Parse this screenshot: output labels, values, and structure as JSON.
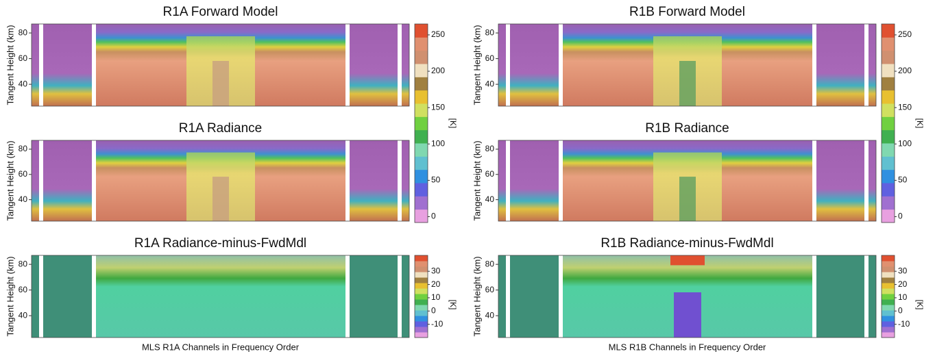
{
  "chart_data": [
    {
      "type": "heatmap",
      "title": "R1A Forward Model",
      "ylabel": "Tangent Height (km)",
      "ylim": [
        23,
        87
      ],
      "yticks": [
        40,
        60,
        80
      ],
      "colorbar": {
        "label": "[K]",
        "clim": [
          -8,
          265
        ],
        "ticks": [
          0,
          50,
          100,
          150,
          200,
          250
        ],
        "colors": [
          "#e8a0e0",
          "#a070d0",
          "#6060e0",
          "#3090e0",
          "#60c0d0",
          "#80d8b0",
          "#40b050",
          "#70d040",
          "#d0e060",
          "#e8c030",
          "#a08040",
          "#f0e0c0",
          "#d09070",
          "#e09070",
          "#e05030"
        ]
      }
    },
    {
      "type": "heatmap",
      "title": "R1B Forward Model",
      "ylabel": "Tangent Height (km)",
      "ylim": [
        23,
        87
      ],
      "yticks": [
        40,
        60,
        80
      ],
      "colorbar": {
        "label": "[K]",
        "clim": [
          -8,
          265
        ],
        "ticks": [
          0,
          50,
          100,
          150,
          200,
          250
        ],
        "colors": [
          "#e8a0e0",
          "#a070d0",
          "#6060e0",
          "#3090e0",
          "#60c0d0",
          "#80d8b0",
          "#40b050",
          "#70d040",
          "#d0e060",
          "#e8c030",
          "#a08040",
          "#f0e0c0",
          "#d09070",
          "#e09070",
          "#e05030"
        ]
      }
    },
    {
      "type": "heatmap",
      "title": "R1A Radiance",
      "ylabel": "Tangent Height (km)",
      "ylim": [
        23,
        87
      ],
      "yticks": [
        40,
        60,
        80
      ]
    },
    {
      "type": "heatmap",
      "title": "R1B Radiance",
      "ylabel": "Tangent Height (km)",
      "ylim": [
        23,
        87
      ],
      "yticks": [
        40,
        60,
        80
      ]
    },
    {
      "type": "heatmap",
      "title": "R1A Radiance-minus-FwdMdl",
      "ylabel": "Tangent Height (km)",
      "xlabel": "MLS R1A Channels in Frequency Order",
      "ylim": [
        23,
        87
      ],
      "yticks": [
        40,
        60,
        80
      ],
      "colorbar": {
        "label": "[K]",
        "clim": [
          -20,
          42
        ],
        "ticks": [
          -10,
          0,
          10,
          20,
          30
        ],
        "colors": [
          "#e8a0e0",
          "#a070d0",
          "#6060e0",
          "#3090e0",
          "#60c0d0",
          "#80d8b0",
          "#40b050",
          "#70d040",
          "#d0e060",
          "#e8c030",
          "#a08040",
          "#f0e0c0",
          "#d09070",
          "#e09070",
          "#e05030"
        ]
      }
    },
    {
      "type": "heatmap",
      "title": "R1B Radiance-minus-FwdMdl",
      "ylabel": "Tangent Height (km)",
      "xlabel": "MLS R1B Channels in Frequency Order",
      "ylim": [
        23,
        87
      ],
      "yticks": [
        40,
        60,
        80
      ],
      "colorbar": {
        "label": "[K]",
        "clim": [
          -20,
          42
        ],
        "ticks": [
          -10,
          0,
          10,
          20,
          30
        ],
        "colors": [
          "#e8a0e0",
          "#a070d0",
          "#6060e0",
          "#3090e0",
          "#60c0d0",
          "#80d8b0",
          "#40b050",
          "#70d040",
          "#d0e060",
          "#e8c030",
          "#a08040",
          "#f0e0c0",
          "#d09070",
          "#e09070",
          "#e05030"
        ]
      }
    }
  ]
}
